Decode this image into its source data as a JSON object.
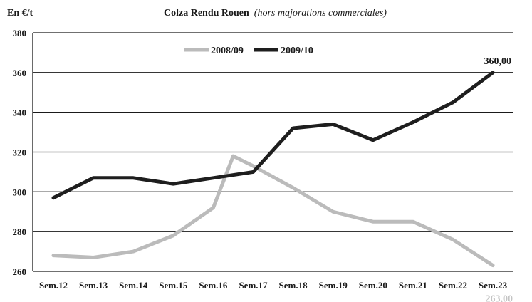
{
  "chart_data": {
    "type": "line",
    "title": "Colza Rendu Rouen",
    "subtitle": "(hors majorations commerciales)",
    "ylabel": "En €/t",
    "xlabel": "",
    "categories": [
      "Sem.12",
      "Sem.13",
      "Sem.14",
      "Sem.15",
      "Sem.16",
      "Sem.17",
      "Sem.18",
      "Sem.19",
      "Sem.20",
      "Sem.21",
      "Sem.22",
      "Sem.23"
    ],
    "x": [
      12,
      13,
      14,
      15,
      16,
      16.5,
      17,
      18,
      19,
      20,
      21,
      22,
      23
    ],
    "ylim": [
      260,
      380
    ],
    "yticks": [
      260,
      280,
      300,
      320,
      340,
      360,
      380
    ],
    "grid": true,
    "legend_position": "top-center",
    "series": [
      {
        "name": "2008/09",
        "color": "#bbbbbb",
        "x": [
          12,
          13,
          14,
          15,
          16,
          16.5,
          17,
          18,
          19,
          20,
          21,
          22,
          23
        ],
        "values": [
          268,
          267,
          270,
          278,
          292,
          318,
          313,
          302,
          290,
          285,
          285,
          276,
          263
        ],
        "end_label": "263,00"
      },
      {
        "name": "2009/10",
        "color": "#1e1e1e",
        "x": [
          12,
          13,
          14,
          15,
          16,
          17,
          18,
          19,
          20,
          21,
          22,
          23
        ],
        "values": [
          297,
          307,
          307,
          304,
          307,
          310,
          332,
          334,
          326,
          335,
          345,
          360
        ],
        "end_label": "360,00"
      }
    ]
  }
}
